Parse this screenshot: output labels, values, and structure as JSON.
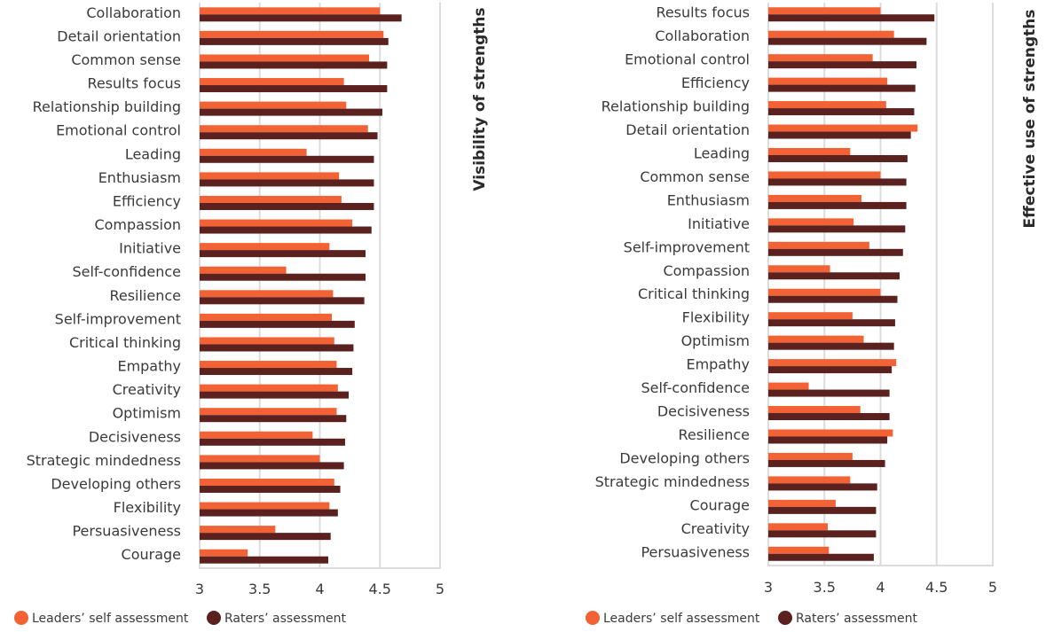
{
  "colors": {
    "self": "#F26234",
    "raters": "#5A211E",
    "grid": "#DCDCDC"
  },
  "chart_data": [
    {
      "type": "bar",
      "orientation": "horizontal",
      "title": "Visibility of strengths",
      "xlim": [
        3,
        5
      ],
      "xticks": [
        "3",
        "3.5",
        "4",
        "4.5",
        "5"
      ],
      "xtick_values": [
        3,
        3.5,
        4,
        4.5,
        5
      ],
      "grid": true,
      "legend_position": "bottom-left",
      "categories": [
        "Collaboration",
        "Detail orientation",
        "Common sense",
        "Results focus",
        "Relationship building",
        "Emotional control",
        "Leading",
        "Enthusiasm",
        "Efficiency",
        "Compassion",
        "Initiative",
        "Self-confidence",
        "Resilience",
        "Self-improvement",
        "Critical thinking",
        "Empathy",
        "Creativity",
        "Optimism",
        "Decisiveness",
        "Strategic mindedness",
        "Developing others",
        "Flexibility",
        "Persuasiveness",
        "Courage"
      ],
      "series": [
        {
          "name": "Leaders’ self assessment",
          "values": [
            4.5,
            4.53,
            4.41,
            4.2,
            4.22,
            4.4,
            3.89,
            4.16,
            4.18,
            4.27,
            4.08,
            3.72,
            4.11,
            4.1,
            4.12,
            4.14,
            4.15,
            4.14,
            3.94,
            4.0,
            4.12,
            4.08,
            3.63,
            3.4
          ]
        },
        {
          "name": "Raters’ assessment",
          "values": [
            4.68,
            4.57,
            4.56,
            4.56,
            4.52,
            4.48,
            4.45,
            4.45,
            4.45,
            4.43,
            4.38,
            4.38,
            4.37,
            4.29,
            4.28,
            4.27,
            4.24,
            4.22,
            4.21,
            4.2,
            4.17,
            4.15,
            4.09,
            4.07
          ]
        }
      ]
    },
    {
      "type": "bar",
      "orientation": "horizontal",
      "title": "Effective use of strengths",
      "xlim": [
        3,
        5
      ],
      "xticks": [
        "3",
        "3.5",
        "4",
        "4.5",
        "5"
      ],
      "xtick_values": [
        3,
        3.5,
        4,
        4.5,
        5
      ],
      "grid": true,
      "legend_position": "bottom-left",
      "categories": [
        "Results focus",
        "Collaboration",
        "Emotional control",
        "Efficiency",
        "Relationship building",
        "Detail orientation",
        "Leading",
        "Common sense",
        "Enthusiasm",
        "Initiative",
        "Self-improvement",
        "Compassion",
        "Critical thinking",
        "Flexibility",
        "Optimism",
        "Empathy",
        "Self-confidence",
        "Decisiveness",
        "Resilience",
        "Developing others",
        "Strategic mindedness",
        "Courage",
        "Creativity",
        "Persuasiveness"
      ],
      "series": [
        {
          "name": "Leaders’ self assessment",
          "values": [
            4.0,
            4.12,
            3.93,
            4.06,
            4.05,
            4.33,
            3.73,
            4.0,
            3.83,
            3.76,
            3.9,
            3.55,
            4.0,
            3.75,
            3.85,
            4.14,
            3.36,
            3.82,
            4.11,
            3.75,
            3.73,
            3.6,
            3.53,
            3.54
          ]
        },
        {
          "name": "Raters’ assessment",
          "values": [
            4.48,
            4.41,
            4.32,
            4.31,
            4.3,
            4.27,
            4.24,
            4.23,
            4.23,
            4.22,
            4.2,
            4.17,
            4.15,
            4.13,
            4.12,
            4.1,
            4.08,
            4.08,
            4.06,
            4.04,
            3.97,
            3.96,
            3.96,
            3.94
          ]
        }
      ]
    }
  ],
  "legend": {
    "items": [
      {
        "label": "Leaders’ self assessment",
        "color_key": "self"
      },
      {
        "label": "Raters’ assessment",
        "color_key": "raters"
      }
    ]
  }
}
